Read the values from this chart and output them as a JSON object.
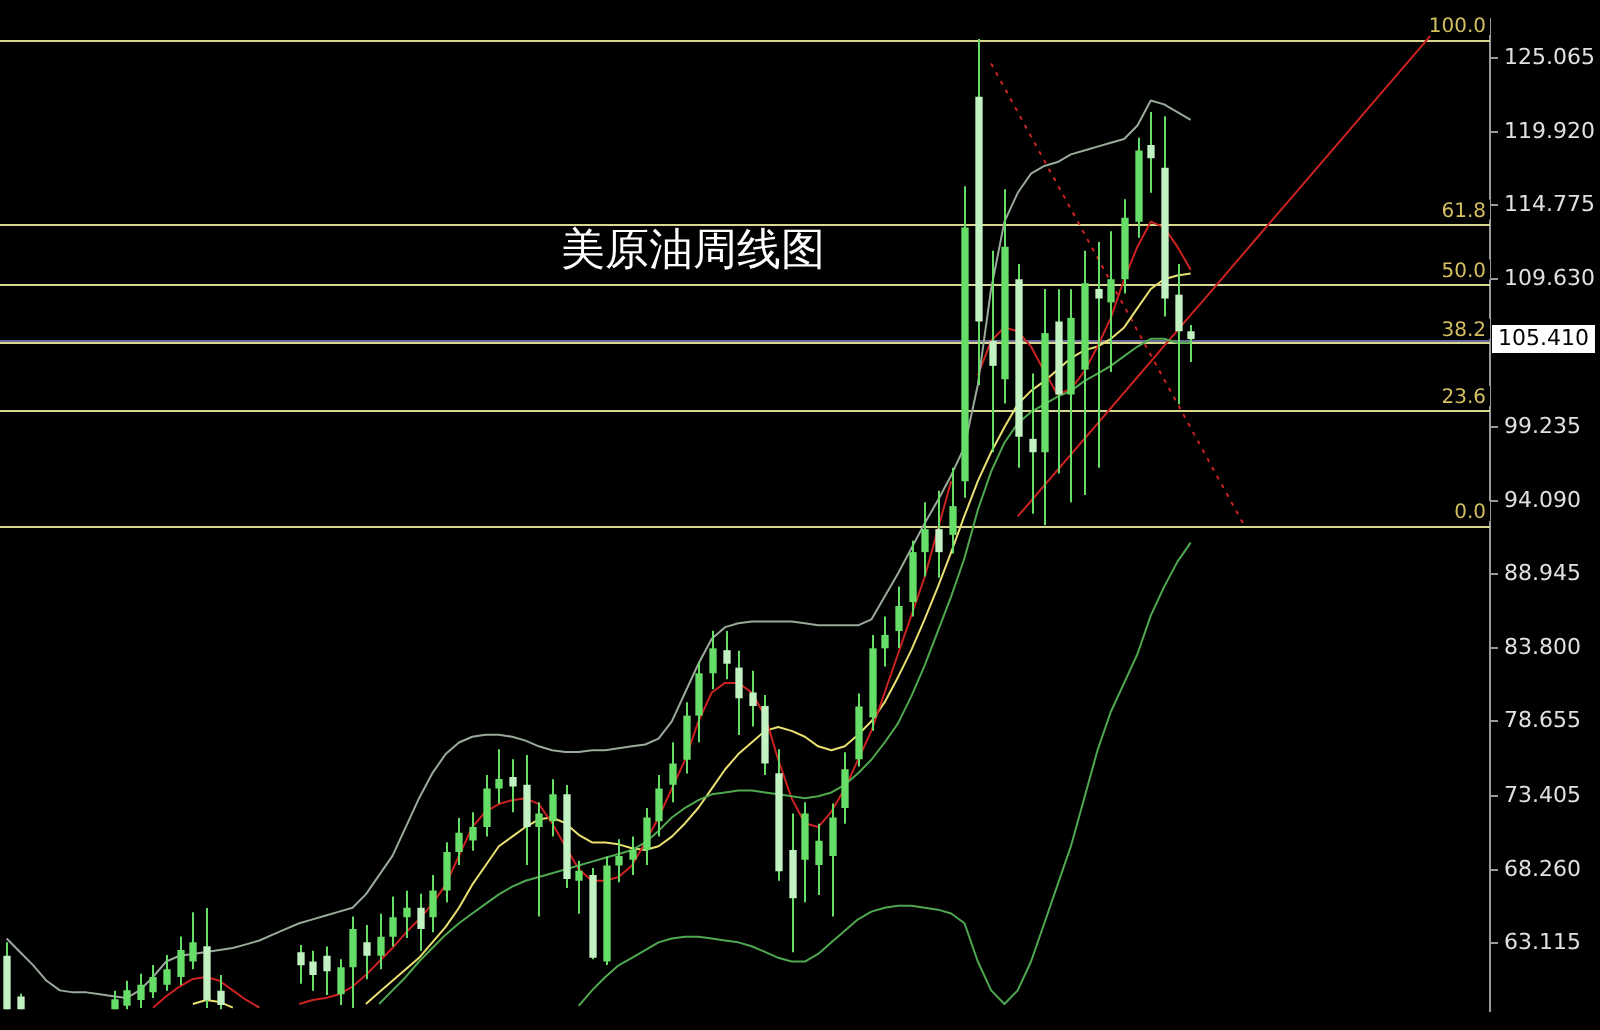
{
  "chart_data": {
    "type": "candlestick",
    "title": "美原油周线图",
    "categories": [
      null,
      null,
      null,
      null,
      null,
      null,
      null,
      null,
      null,
      null,
      null,
      null,
      null,
      null,
      null,
      null,
      null,
      null,
      null,
      null,
      null,
      null,
      null,
      null,
      null,
      null,
      null,
      null,
      null,
      null,
      null,
      null,
      null,
      null,
      null,
      null,
      null,
      null,
      null,
      null,
      null,
      null,
      null,
      null,
      null,
      null,
      null,
      null,
      null,
      null,
      null,
      null,
      null,
      null,
      null,
      null,
      null,
      null,
      null,
      null,
      null,
      null,
      null,
      null,
      null,
      null,
      null,
      null,
      null,
      null,
      null,
      null,
      null,
      null,
      null,
      null,
      null,
      null,
      null,
      null,
      null,
      null,
      null,
      null,
      null,
      null,
      null,
      null,
      null,
      null,
      null,
      null,
      null,
      null,
      null,
      null,
      null,
      null,
      null,
      null,
      null,
      null,
      null,
      null,
      null,
      null,
      null,
      null,
      null,
      null,
      null,
      null
    ],
    "ylim": [
      58.4,
      127.8
    ],
    "yticks": [
      125.065,
      {
        "value": 119.92,
        "label": "119.920"
      },
      114.775,
      {
        "value": 109.63,
        "label": "109.630"
      },
      99.235,
      {
        "value": 94.09,
        "label": "94.090"
      },
      88.945,
      {
        "value": 83.8,
        "label": "83.800"
      },
      78.655,
      73.405,
      {
        "value": 68.26,
        "label": "68.260"
      },
      63.115
    ],
    "tick_labels": "y",
    "ref_lines": [
      {
        "axis": "y",
        "value": 126.41,
        "color": "#d8d890"
      },
      {
        "axis": "y",
        "value": 113.5,
        "color": "#d8d890"
      },
      {
        "axis": "y",
        "value": 109.3,
        "color": "#d8d890"
      },
      {
        "axis": "y",
        "value": 105.15,
        "color": "#d8d890"
      },
      {
        "axis": "y",
        "value": 100.45,
        "color": "#d8d890"
      },
      {
        "axis": "y",
        "value": 92.38,
        "color": "#d8d890"
      },
      {
        "axis": "y",
        "value": 105.41,
        "label": "105.410",
        "color": "#6c6c9c"
      }
    ],
    "annotations": [
      {
        "text": "100.0",
        "y": 126.41
      },
      {
        "text": "61.8",
        "y": 113.5
      },
      {
        "text": "50.0",
        "y": 109.3
      },
      {
        "text": "38.2",
        "y": 105.15
      },
      {
        "text": "23.6",
        "y": 100.45
      },
      {
        "text": "0.0",
        "y": 92.38
      }
    ],
    "series": [
      {
        "type": "line",
        "color": "#9aaa9a",
        "values": [
          63.46,
          62.52,
          61.58,
          60.5,
          59.83,
          59.69,
          59.69,
          59.56,
          59.42,
          59.29,
          59.83,
          60.77,
          61.85,
          62.25,
          62.38,
          62.52,
          62.65,
          62.79,
          63.05,
          63.32,
          63.73,
          64.13,
          64.53,
          64.8,
          65.07,
          65.34,
          65.61,
          66.55,
          67.9,
          69.24,
          71.26,
          73.28,
          75.03,
          76.37,
          77.18,
          77.58,
          77.72,
          77.72,
          77.58,
          77.31,
          76.91,
          76.64,
          76.51,
          76.51,
          76.64,
          76.64,
          76.77,
          76.91,
          77.04,
          77.45,
          78.66,
          80.68,
          82.69,
          84.44,
          85.25,
          85.52,
          85.65,
          85.65,
          85.65,
          85.65,
          85.52,
          85.38,
          85.38,
          85.38,
          85.38,
          85.79,
          87.4,
          89.01,
          90.76,
          92.51,
          94.13,
          95.87,
          97.89,
          102.2,
          108.92,
          113.63,
          115.65,
          116.99,
          117.53,
          117.8,
          118.34,
          118.61,
          118.88,
          119.15,
          119.42,
          120.36,
          122.11,
          121.84,
          121.3,
          120.76,
          null,
          null,
          null,
          null,
          null,
          null,
          null,
          null,
          null,
          null,
          null,
          null,
          null,
          null,
          null,
          null,
          null,
          null,
          null,
          null,
          null,
          null
        ]
      },
      {
        "type": "line",
        "color": "#4fa84f",
        "values": [
          null,
          null,
          null,
          null,
          null,
          null,
          null,
          null,
          null,
          null,
          null,
          null,
          null,
          null,
          null,
          null,
          null,
          null,
          null,
          null,
          null,
          null,
          null,
          null,
          null,
          null,
          null,
          null,
          58.88,
          59.83,
          60.77,
          61.85,
          62.79,
          63.73,
          64.53,
          65.21,
          65.88,
          66.55,
          67.09,
          67.5,
          67.77,
          68.03,
          68.3,
          68.57,
          68.84,
          69.11,
          69.38,
          69.65,
          70.18,
          70.99,
          71.93,
          72.61,
          73.14,
          73.55,
          73.68,
          73.82,
          73.82,
          73.68,
          73.55,
          73.41,
          73.28,
          73.41,
          73.68,
          74.22,
          75.03,
          75.97,
          77.18,
          78.52,
          80.41,
          82.56,
          84.98,
          87.4,
          90.09,
          93.45,
          96.14,
          98.16,
          99.51,
          100.31,
          100.85,
          101.39,
          101.79,
          102.47,
          103.0,
          103.54,
          104.22,
          104.89,
          105.43,
          105.43,
          105.16,
          105.16,
          null,
          null,
          null,
          null,
          null,
          null,
          null,
          null,
          null,
          null,
          null,
          null,
          null,
          null,
          null,
          null,
          null,
          null,
          null,
          null,
          null,
          null
        ]
      },
      {
        "type": "line",
        "color": "#4fa84f",
        "values": [
          null,
          null,
          null,
          null,
          null,
          null,
          null,
          null,
          null,
          null,
          null,
          null,
          null,
          null,
          null,
          null,
          null,
          null,
          null,
          null,
          null,
          null,
          null,
          null,
          null,
          null,
          null,
          null,
          null,
          null,
          null,
          null,
          null,
          null,
          null,
          null,
          null,
          null,
          null,
          null,
          null,
          null,
          null,
          58.75,
          59.83,
          60.77,
          61.58,
          62.11,
          62.65,
          63.19,
          63.46,
          63.59,
          63.59,
          63.46,
          63.32,
          63.19,
          62.92,
          62.52,
          62.11,
          61.85,
          61.85,
          62.38,
          63.19,
          64.0,
          64.8,
          65.34,
          65.61,
          65.75,
          65.75,
          65.61,
          65.48,
          65.21,
          64.53,
          61.85,
          59.83,
          58.88,
          59.83,
          61.85,
          64.53,
          67.23,
          69.92,
          73.28,
          76.64,
          79.33,
          81.35,
          83.37,
          86.06,
          88.07,
          89.82,
          91.17,
          null,
          null,
          null,
          null,
          null,
          null,
          null,
          null,
          null,
          null,
          null,
          null,
          null,
          null,
          null,
          null,
          null,
          null,
          null,
          null,
          null,
          null
        ]
      },
      {
        "type": "line",
        "color": "#cc2222",
        "values": [
          null,
          null,
          null,
          null,
          null,
          null,
          null,
          null,
          null,
          null,
          null,
          58.62,
          59.42,
          60.1,
          60.63,
          60.77,
          60.5,
          59.83,
          59.16,
          58.62,
          null,
          null,
          58.88,
          59.16,
          59.29,
          59.56,
          60.1,
          60.9,
          61.85,
          62.79,
          63.86,
          64.8,
          65.88,
          67.23,
          69.24,
          71.26,
          72.34,
          72.87,
          73.14,
          73.28,
          72.87,
          71.53,
          69.92,
          68.3,
          67.5,
          67.5,
          67.77,
          68.57,
          70.18,
          71.93,
          73.95,
          75.97,
          78.66,
          80.68,
          81.35,
          81.35,
          80.68,
          79.06,
          75.97,
          73.28,
          71.53,
          71.26,
          72.34,
          73.95,
          75.97,
          77.99,
          80.68,
          83.37,
          86.06,
          88.74,
          92.11,
          95.47,
          null,
          102.87,
          105.29,
          106.23,
          105.96,
          104.89,
          103.14,
          101.53,
          101.93,
          103.14,
          104.89,
          106.9,
          109.6,
          111.88,
          113.63,
          113.23,
          111.88,
          110.27,
          null,
          null,
          null,
          null,
          null,
          null,
          null,
          null,
          null,
          null,
          null,
          null,
          null,
          null,
          null,
          null,
          null,
          null,
          null,
          null,
          null,
          null
        ]
      },
      {
        "type": "line",
        "color": "#e8e070",
        "values": [
          null,
          null,
          null,
          null,
          null,
          null,
          null,
          null,
          null,
          null,
          null,
          null,
          null,
          null,
          58.88,
          59.16,
          59.02,
          58.62,
          null,
          null,
          null,
          null,
          null,
          null,
          null,
          null,
          null,
          58.88,
          59.69,
          60.5,
          61.31,
          62.11,
          63.19,
          64.27,
          65.61,
          67.23,
          68.57,
          69.92,
          70.59,
          71.26,
          71.8,
          71.93,
          71.53,
          70.72,
          70.18,
          70.18,
          70.05,
          69.78,
          69.65,
          69.92,
          70.59,
          71.53,
          72.61,
          73.95,
          75.29,
          76.37,
          77.18,
          77.99,
          78.26,
          77.99,
          77.58,
          76.91,
          76.64,
          76.91,
          77.72,
          78.66,
          80.0,
          81.75,
          83.64,
          85.79,
          88.07,
          90.5,
          93.05,
          95.47,
          97.49,
          99.24,
          100.85,
          101.79,
          102.47,
          103.27,
          104.08,
          104.62,
          104.89,
          105.43,
          106.23,
          107.58,
          108.92,
          109.6,
          109.86,
          110.0,
          null,
          null,
          null,
          null,
          null,
          null,
          null,
          null,
          null,
          null,
          null,
          null,
          null,
          null,
          null,
          null,
          null,
          null,
          null,
          null,
          null,
          null
        ]
      },
      {
        "type": "line",
        "color": "#cc2222",
        "values": [
          null,
          null,
          null,
          null,
          null,
          null,
          null,
          null,
          null,
          null,
          null,
          null,
          null,
          null,
          null,
          null,
          null,
          null,
          null,
          null,
          null,
          null,
          null,
          null,
          null,
          null,
          null,
          null,
          null,
          null,
          null,
          null,
          null,
          null,
          null,
          null,
          null,
          null,
          null,
          null,
          null,
          null,
          null,
          null,
          null,
          null,
          null,
          null,
          null,
          null,
          null,
          null,
          null,
          null,
          null,
          null,
          null,
          null,
          null,
          null,
          null,
          null,
          null,
          null,
          null,
          null,
          null,
          null,
          null,
          null,
          null,
          null,
          null,
          null,
          null,
          null,
          93.0,
          94.08,
          95.17,
          96.25,
          97.34,
          98.42,
          99.5,
          100.59,
          101.67,
          102.76,
          103.84,
          104.93,
          106.01,
          107.1,
          108.18,
          109.26,
          110.35,
          111.43,
          112.52,
          113.6,
          114.68,
          115.77,
          116.85,
          117.94,
          119.02,
          120.1,
          121.19,
          122.27,
          123.36,
          124.44,
          125.53,
          126.61,
          null,
          null,
          null,
          null
        ]
      },
      {
        "type": "line",
        "color": "#cc2222",
        "line_style": "dotted",
        "values": [
          null,
          null,
          null,
          null,
          null,
          null,
          null,
          null,
          null,
          null,
          null,
          null,
          null,
          null,
          null,
          null,
          null,
          null,
          null,
          null,
          null,
          null,
          null,
          null,
          null,
          null,
          null,
          null,
          null,
          null,
          null,
          null,
          null,
          null,
          null,
          null,
          null,
          null,
          null,
          null,
          null,
          null,
          null,
          null,
          null,
          null,
          null,
          null,
          null,
          null,
          null,
          null,
          null,
          null,
          null,
          null,
          null,
          null,
          null,
          null,
          null,
          null,
          null,
          null,
          null,
          null,
          null,
          null,
          null,
          null,
          null,
          null,
          null,
          null,
          124.7,
          123.0,
          121.3,
          119.6,
          117.9,
          116.2,
          114.5,
          112.8,
          111.1,
          109.4,
          107.7,
          106.0,
          104.3,
          102.6,
          100.9,
          99.2,
          97.5,
          95.8,
          94.1,
          92.4,
          null,
          null,
          null,
          null,
          null,
          null,
          null,
          null,
          null,
          null,
          null,
          null,
          null,
          null,
          null,
          null,
          null,
          null
        ]
      },
      {
        "type": "candlestick",
        "color": "#66dd66",
        "colors": [
          "#c2f1c2",
          "#c2f1c2",
          null,
          null,
          null,
          null,
          null,
          null,
          "#66dd66",
          "#66dd66",
          "#66dd66",
          "#66dd66",
          "#66dd66",
          "#66dd66",
          "#66dd66",
          "#c2f1c2",
          "#c2f1c2",
          null,
          null,
          null,
          null,
          null,
          "#c2f1c2",
          "#c2f1c2",
          "#c2f1c2",
          "#66dd66",
          "#66dd66",
          "#c2f1c2",
          "#66dd66",
          "#66dd66",
          "#66dd66",
          "#c2f1c2",
          "#66dd66",
          "#66dd66",
          "#66dd66",
          "#66dd66",
          "#66dd66",
          "#66dd66",
          "#c2f1c2",
          "#c2f1c2",
          "#66dd66",
          "#66dd66",
          "#c2f1c2",
          "#66dd66",
          "#c2f1c2",
          "#66dd66",
          "#66dd66",
          "#66dd66",
          "#66dd66",
          "#66dd66",
          "#66dd66",
          "#66dd66",
          "#66dd66",
          "#66dd66",
          "#c2f1c2",
          "#c2f1c2",
          "#c2f1c2",
          "#c2f1c2",
          "#c2f1c2",
          "#c2f1c2",
          "#66dd66",
          "#66dd66",
          "#66dd66",
          "#66dd66",
          "#66dd66",
          "#66dd66",
          "#66dd66",
          "#66dd66",
          "#66dd66",
          "#66dd66",
          "#c2f1c2",
          "#66dd66",
          "#66dd66",
          "#c2f1c2",
          "#c2f1c2",
          "#66dd66",
          "#c2f1c2",
          "#c2f1c2",
          "#66dd66",
          "#c2f1c2",
          "#66dd66",
          "#66dd66",
          "#c2f1c2",
          "#66dd66",
          "#66dd66",
          "#66dd66",
          "#c2f1c2",
          "#c2f1c2",
          "#c2f1c2",
          "#c2f1c2",
          null,
          null,
          null,
          null,
          null,
          null,
          null,
          null,
          null,
          null,
          null,
          null,
          null,
          null,
          null,
          null,
          null,
          null,
          null,
          null,
          null,
          null
        ],
        "ohlc": [
          [
            62.25,
            63.19,
            58.5,
            58.5
          ],
          [
            59.4,
            59.6,
            58.5,
            58.5
          ],
          null,
          null,
          null,
          null,
          null,
          null,
          [
            58.5,
            59.8,
            58.5,
            59.2
          ],
          [
            58.75,
            60.5,
            58.5,
            59.83
          ],
          [
            59.16,
            61.0,
            58.6,
            60.23
          ],
          [
            59.7,
            61.6,
            59.3,
            60.77
          ],
          [
            60.23,
            62.3,
            59.8,
            61.31
          ],
          [
            60.77,
            63.6,
            60.2,
            62.65
          ],
          [
            61.85,
            65.3,
            61.3,
            63.19
          ],
          [
            62.92,
            65.6,
            58.6,
            59.16
          ],
          [
            59.8,
            60.9,
            58.5,
            58.8
          ],
          null,
          null,
          null,
          null,
          null,
          [
            62.5,
            63.0,
            60.3,
            61.58
          ],
          [
            61.85,
            62.6,
            59.8,
            60.9
          ],
          [
            62.25,
            62.9,
            59.5,
            61.17
          ],
          [
            59.56,
            62.0,
            58.8,
            61.44
          ],
          [
            61.44,
            65.0,
            58.6,
            64.13
          ],
          [
            63.19,
            64.4,
            60.6,
            62.25
          ],
          [
            62.25,
            65.2,
            61.3,
            63.59
          ],
          [
            63.59,
            66.4,
            62.9,
            64.94
          ],
          [
            64.94,
            66.8,
            63.5,
            65.61
          ],
          [
            65.61,
            66.6,
            62.6,
            64.13
          ],
          [
            64.94,
            67.9,
            63.9,
            66.82
          ],
          [
            66.82,
            70.2,
            66.0,
            69.51
          ],
          [
            69.51,
            71.9,
            68.6,
            70.86
          ],
          [
            70.32,
            72.3,
            69.6,
            71.26
          ],
          [
            71.26,
            74.9,
            70.6,
            73.95
          ],
          [
            73.95,
            76.7,
            72.9,
            74.62
          ],
          [
            74.76,
            76.0,
            72.3,
            74.09
          ],
          [
            74.22,
            76.3,
            68.6,
            71.26
          ],
          [
            71.26,
            73.0,
            65.0,
            72.2
          ],
          [
            71.66,
            74.6,
            70.6,
            73.55
          ],
          [
            73.55,
            74.2,
            67.0,
            67.63
          ],
          [
            67.5,
            68.9,
            65.2,
            68.2
          ],
          [
            67.9,
            68.4,
            62.0,
            62.11
          ],
          [
            61.85,
            69.2,
            61.6,
            68.57
          ],
          [
            68.57,
            70.4,
            67.4,
            69.24
          ],
          [
            68.97,
            70.6,
            67.9,
            69.65
          ],
          [
            69.65,
            72.6,
            68.6,
            71.93
          ],
          [
            71.66,
            74.9,
            70.6,
            73.95
          ],
          [
            74.22,
            77.2,
            73.0,
            75.7
          ],
          [
            75.97,
            80.0,
            75.0,
            79.06
          ],
          [
            79.06,
            82.8,
            77.2,
            82.02
          ],
          [
            82.02,
            85.0,
            80.9,
            83.77
          ],
          [
            83.64,
            84.98,
            81.6,
            82.69
          ],
          [
            82.42,
            83.6,
            77.7,
            80.27
          ],
          [
            80.68,
            82.2,
            78.3,
            79.73
          ],
          [
            79.73,
            80.5,
            74.9,
            75.7
          ],
          [
            75.03,
            76.7,
            67.5,
            68.17
          ],
          [
            69.65,
            72.2,
            62.5,
            66.28
          ],
          [
            68.97,
            73.0,
            66.0,
            72.2
          ],
          [
            68.6,
            71.5,
            66.5,
            70.3
          ],
          [
            69.24,
            72.9,
            65.0,
            71.93
          ],
          [
            72.6,
            76.5,
            71.5,
            75.3
          ],
          [
            76.0,
            80.6,
            75.5,
            79.7
          ],
          [
            78.93,
            84.7,
            78.0,
            83.77
          ],
          [
            83.77,
            86.0,
            82.5,
            84.71
          ],
          [
            84.98,
            88.1,
            83.8,
            86.73
          ],
          [
            87.0,
            91.3,
            86.0,
            90.5
          ],
          [
            90.5,
            94.0,
            88.8,
            92.11
          ],
          [
            92.11,
            94.8,
            88.7,
            90.5
          ],
          [
            91.71,
            96.4,
            90.4,
            93.72
          ],
          [
            95.47,
            116.1,
            94.3,
            113.23
          ],
          [
            122.37,
            126.41,
            102.2,
            106.64
          ],
          [
            105.29,
            111.6,
            97.5,
            103.54
          ],
          [
            102.6,
            115.9,
            100.9,
            111.88
          ],
          [
            109.6,
            110.67,
            96.41,
            98.57
          ],
          [
            98.43,
            103.0,
            93.18,
            97.49
          ],
          [
            97.49,
            108.92,
            92.38,
            105.83
          ],
          [
            106.64,
            108.9,
            96.0,
            101.53
          ],
          [
            101.53,
            108.9,
            94.0,
            106.9
          ],
          [
            103.27,
            111.6,
            94.5,
            109.32
          ],
          [
            108.92,
            112.2,
            96.4,
            108.25
          ],
          [
            107.98,
            112.96,
            103.1,
            109.6
          ],
          [
            109.6,
            115.2,
            108.6,
            113.9
          ],
          [
            113.63,
            119.5,
            112.5,
            118.61
          ],
          [
            119.0,
            121.3,
            115.65,
            118.07
          ],
          [
            117.4,
            121.0,
            107.0,
            108.25
          ],
          [
            108.52,
            110.67,
            100.85,
            105.96
          ],
          [
            105.96,
            106.4,
            103.8,
            105.41
          ],
          null,
          null,
          null,
          null,
          null,
          null,
          null,
          null,
          null,
          null,
          null,
          null,
          null,
          null,
          null,
          null,
          null,
          null,
          null,
          null,
          null,
          null
        ]
      }
    ]
  }
}
